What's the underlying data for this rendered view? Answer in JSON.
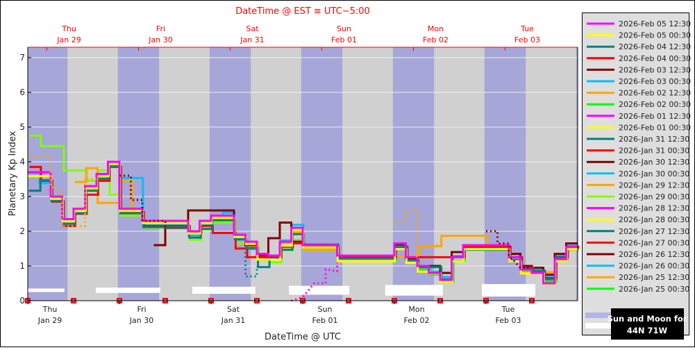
{
  "chart_data": {
    "type": "line",
    "step": true,
    "title_top_axis": "DateTime @ EST ≡ UTC−5:00",
    "xlabel": "DateTime @ UTC",
    "ylabel": "Planetary Kp Index",
    "ylim": [
      0,
      7.3
    ],
    "yticks": [
      0,
      1,
      2,
      3,
      4,
      5,
      6,
      7
    ],
    "xlim_utc": [
      "2026-01-29 00:00",
      "2026-02-04 00:00"
    ],
    "bin_hours": 3,
    "grid": true,
    "legend_placement": "right",
    "bottom_ticks": [
      {
        "day": "Thu",
        "date": "Jan 29"
      },
      {
        "day": "Fri",
        "date": "Jan 30"
      },
      {
        "day": "Sat",
        "date": "Jan 31"
      },
      {
        "day": "Sun",
        "date": "Feb 01"
      },
      {
        "day": "Mon",
        "date": "Feb 02"
      },
      {
        "day": "Tue",
        "date": "Feb 03"
      }
    ],
    "top_ticks": [
      {
        "day": "Thu",
        "date": "Jan 29"
      },
      {
        "day": "Fri",
        "date": "Jan 30"
      },
      {
        "day": "Sat",
        "date": "Jan 31"
      },
      {
        "day": "Sun",
        "date": "Feb 01"
      },
      {
        "day": "Mon",
        "date": "Feb 02"
      },
      {
        "day": "Tue",
        "date": "Feb 03"
      }
    ],
    "night_bands_utc_hours": [
      [
        0,
        10.4
      ],
      [
        23.6,
        34.4
      ],
      [
        47.6,
        58.4
      ],
      [
        71.6,
        82.4
      ],
      [
        95.6,
        106.4
      ],
      [
        119.6,
        130.4
      ],
      [
        143.6,
        144
      ]
    ],
    "moon_bars_utc_hours": [
      [
        0,
        9.6
      ],
      [
        17.8,
        34.7
      ],
      [
        43.1,
        59.6
      ],
      [
        68.4,
        84.2
      ],
      [
        93.6,
        108.7
      ],
      [
        118.9,
        132.9
      ]
    ],
    "issue_markers_utc_hours": [
      0,
      12,
      24,
      36,
      48,
      60,
      72,
      84,
      96,
      108,
      120,
      132
    ],
    "series": [
      {
        "name": "2026-Feb 05 12:30",
        "color": "#ff00ff",
        "values": [
          3.7,
          3.7,
          3.0,
          2.35,
          2.65,
          3.3,
          3.65,
          4.0,
          2.65,
          2.65,
          2.3,
          2.3,
          2.3,
          2.3,
          2.0,
          2.3,
          2.45,
          2.45,
          1.9,
          1.7,
          1.35,
          1.3,
          1.7,
          2.1,
          1.6,
          1.6,
          1.6,
          1.3,
          1.3,
          1.3,
          1.3,
          1.3,
          1.65,
          1.25,
          1.0,
          0.8,
          0.6,
          1.25,
          1.6,
          1.6,
          1.6,
          1.6,
          1.25,
          0.9,
          0.8,
          0.5,
          1.2,
          1.55
        ]
      },
      {
        "name": "2026-Feb 05 00:30",
        "color": "#ffff00",
        "values": [
          3.6,
          3.6,
          2.95,
          2.3,
          2.6,
          3.25,
          3.6,
          3.95,
          2.6,
          2.6,
          2.25,
          2.25,
          2.25,
          2.25,
          1.95,
          2.25,
          2.4,
          2.4,
          1.85,
          1.65,
          1.2,
          1.2,
          1.6,
          2.05,
          1.55,
          1.55,
          1.55,
          1.15,
          1.15,
          1.15,
          1.15,
          1.15,
          1.5,
          1.1,
          0.85,
          0.8,
          0.55,
          1.15,
          1.5,
          1.5,
          1.5,
          1.5,
          1.15,
          0.8,
          0.8,
          0.5,
          1.15,
          1.5
        ]
      },
      {
        "name": "2026-Feb 04 12:30",
        "color": "#008080",
        "values": [
          3.2,
          3.5,
          2.9,
          2.25,
          2.55,
          3.2,
          3.55,
          3.9,
          2.55,
          2.55,
          2.15,
          2.15,
          2.15,
          2.15,
          1.85,
          2.1,
          2.35,
          2.35,
          1.8,
          1.55,
          1.0,
          1.25,
          1.5,
          1.95,
          1.65,
          1.65,
          1.65,
          1.25,
          1.25,
          1.25,
          1.25,
          1.25,
          1.6,
          1.2,
          1.0,
          1.0,
          0.65,
          1.3,
          1.5,
          1.5,
          1.5,
          1.5,
          1.2,
          0.95,
          0.9,
          0.65,
          1.3,
          1.55
        ]
      },
      {
        "name": "2026-Feb 04 00:30",
        "color": "#ff0000",
        "values": [
          3.9,
          3.5,
          2.9,
          2.2,
          2.55,
          3.1,
          3.5,
          3.9,
          2.6,
          2.6,
          2.2,
          2.2,
          2.2,
          2.2,
          2.0,
          2.2,
          2.0,
          2.0,
          1.55,
          1.3,
          1.3,
          1.3,
          1.6,
          1.7,
          1.6,
          1.6,
          1.6,
          1.3,
          1.3,
          1.3,
          1.3,
          1.3,
          1.6,
          1.3,
          1.3,
          1.3,
          1.3,
          1.3,
          1.6,
          1.6,
          1.6,
          1.6,
          1.3,
          1.0,
          0.9,
          0.7,
          1.3,
          1.6
        ]
      },
      {
        "name": "2026-Feb 03 12:30",
        "color": "#800000",
        "values": [
          null,
          null,
          null,
          null,
          null,
          null,
          null,
          null,
          null,
          null,
          null,
          1.6,
          2.1,
          2.1,
          2.6,
          2.6,
          2.6,
          2.6,
          1.9,
          1.6,
          1.3,
          1.8,
          2.25,
          1.7,
          1.6,
          1.6,
          1.6,
          1.3,
          1.3,
          1.3,
          1.3,
          1.3,
          1.6,
          1.2,
          1.0,
          1.0,
          0.8,
          1.4,
          1.6,
          1.6,
          1.6,
          1.6,
          1.35,
          1.0,
          0.95,
          0.75,
          1.35,
          1.65
        ]
      },
      {
        "name": "2026-Feb 03 00:30",
        "color": "#00bfff",
        "values": [
          3.7,
          3.4,
          2.9,
          2.3,
          2.6,
          3.2,
          3.5,
          3.9,
          3.55,
          3.55,
          2.2,
          2.2,
          2.2,
          2.2,
          1.9,
          2.2,
          2.4,
          2.55,
          1.8,
          1.5,
          1.2,
          1.3,
          1.75,
          2.2,
          1.6,
          1.6,
          1.6,
          1.25,
          1.25,
          1.25,
          1.25,
          1.25,
          1.55,
          1.2,
          1.0,
          0.85,
          0.7,
          1.3,
          1.5,
          1.5,
          1.6,
          1.6,
          1.2,
          0.95,
          0.9,
          0.7,
          1.3,
          1.6
        ]
      },
      {
        "name": "2026-Feb 02 12:30",
        "color": "#ffa500",
        "values": [
          null,
          null,
          null,
          null,
          3.45,
          3.85,
          2.85,
          2.85,
          3.5,
          2.55,
          2.2,
          2.2,
          2.2,
          2.2,
          1.85,
          2.2,
          2.45,
          2.4,
          1.85,
          1.6,
          1.3,
          1.3,
          1.7,
          2.0,
          1.5,
          1.5,
          1.5,
          1.2,
          1.2,
          1.2,
          1.2,
          1.2,
          1.3,
          1.3,
          1.6,
          1.6,
          1.9,
          1.9,
          1.9,
          1.9,
          1.5,
          1.5,
          1.2,
          0.85,
          0.85,
          0.85,
          1.2,
          1.5
        ]
      },
      {
        "name": "2026-Feb 02 00:30",
        "color": "#00ff00",
        "values": [
          null,
          null,
          null,
          null,
          null,
          null,
          null,
          null,
          null,
          null,
          null,
          null,
          null,
          null,
          null,
          null,
          null,
          null,
          null,
          null,
          null,
          null,
          null,
          null,
          1.55,
          1.55,
          1.55,
          1.2,
          1.2,
          1.2,
          1.2,
          1.2,
          1.55,
          1.2,
          0.95,
          0.8,
          0.6,
          1.2,
          1.55,
          1.55,
          1.55,
          1.55,
          1.2,
          0.9,
          0.85,
          0.6,
          1.25,
          1.55
        ]
      },
      {
        "name": "2026-Feb 01 12:30",
        "color": "#ff00ff",
        "values": []
      },
      {
        "name": "2026-Feb 01 00:30",
        "color": "#ffff00",
        "values": []
      },
      {
        "name": "2026-Jan 31 12:30",
        "color": "#008080",
        "values": []
      },
      {
        "name": "2026-Jan 31 00:30",
        "color": "#ff0000",
        "values": []
      },
      {
        "name": "2026-Jan 30 12:30",
        "color": "#800000",
        "values": []
      },
      {
        "name": "2026-Jan 30 00:30",
        "color": "#00bfff",
        "values": []
      },
      {
        "name": "2026-Jan 29 12:30",
        "color": "#ffa500",
        "values": []
      },
      {
        "name": "2026-Jan 29 00:30",
        "color": "#80ff00",
        "values": [
          4.8,
          4.5,
          4.5,
          3.8,
          3.8,
          3.5,
          3.8,
          3.1,
          2.5,
          2.5,
          2.15,
          2.15,
          2.15,
          2.15,
          1.8,
          2.1,
          2.3,
          2.3,
          1.7,
          1.7,
          1.3,
          1.15,
          1.5,
          1.8
        ]
      },
      {
        "name": "2026-Jan 28 12:30",
        "color": "#ff00ff",
        "values": []
      },
      {
        "name": "2026-Jan 28 00:30",
        "color": "#ffff00",
        "values": []
      },
      {
        "name": "2026-Jan 27 12:30",
        "color": "#008080",
        "values": []
      },
      {
        "name": "2026-Jan 27 00:30",
        "color": "#ff0000",
        "values": []
      },
      {
        "name": "2026-Jan 26 12:30",
        "color": "#800000",
        "values": []
      },
      {
        "name": "2026-Jan 26 00:30",
        "color": "#00bfff",
        "values": []
      },
      {
        "name": "2026-Jan 25 12:30",
        "color": "#ffa500",
        "values": []
      },
      {
        "name": "2026-Jan 25 00:30",
        "color": "#00ff00",
        "values": []
      }
    ],
    "dotted_segments": [
      {
        "color": "#ffa500",
        "points": [
          [
            0,
            4.15
          ],
          [
            6,
            4.15
          ],
          [
            6,
            3.3
          ],
          [
            9,
            3.1
          ],
          [
            9,
            2.15
          ],
          [
            15,
            2.15
          ],
          [
            15,
            3.5
          ],
          [
            18,
            3.5
          ]
        ]
      },
      {
        "color": "#800000",
        "points": [
          [
            24,
            3.6
          ],
          [
            27,
            3.6
          ],
          [
            27,
            2.9
          ],
          [
            30,
            2.9
          ],
          [
            30,
            2.3
          ],
          [
            36,
            2.3
          ],
          [
            36,
            1.6
          ]
        ]
      },
      {
        "color": "#008080",
        "points": [
          [
            57,
            1.4
          ],
          [
            57,
            0.7
          ],
          [
            60,
            0.7
          ],
          [
            60,
            1.0
          ]
        ]
      },
      {
        "color": "#ff00ff",
        "points": [
          [
            69,
            0.0
          ],
          [
            72,
            0.1
          ],
          [
            75,
            0.5
          ],
          [
            78,
            0.5
          ],
          [
            78,
            0.9
          ],
          [
            81,
            0.85
          ],
          [
            81,
            1.1
          ]
        ]
      },
      {
        "color": "#ffa500",
        "points": [
          [
            96,
            2.25
          ],
          [
            99,
            2.25
          ],
          [
            99,
            2.6
          ],
          [
            102,
            2.6
          ],
          [
            102,
            1.3
          ],
          [
            105,
            1.6
          ],
          [
            108,
            1.6
          ]
        ]
      },
      {
        "color": "#800000",
        "points": [
          [
            120,
            2.0
          ],
          [
            123,
            2.0
          ],
          [
            123,
            1.65
          ],
          [
            126,
            1.65
          ],
          [
            126,
            1.3
          ],
          [
            129,
            0.95
          ],
          [
            132,
            0.95
          ]
        ]
      }
    ],
    "colors": {
      "night_band": "#a6a6d8",
      "day_band": "#d0d0d0",
      "moon_bar": "#ffffff",
      "top_axis": "#ff0000",
      "marker": "#ff0000",
      "marker_center": "#00bfff"
    }
  },
  "legend": {
    "sun_label": "",
    "info_box_line1": "Sun and Moon for",
    "info_box_line2": "44N 71W"
  }
}
